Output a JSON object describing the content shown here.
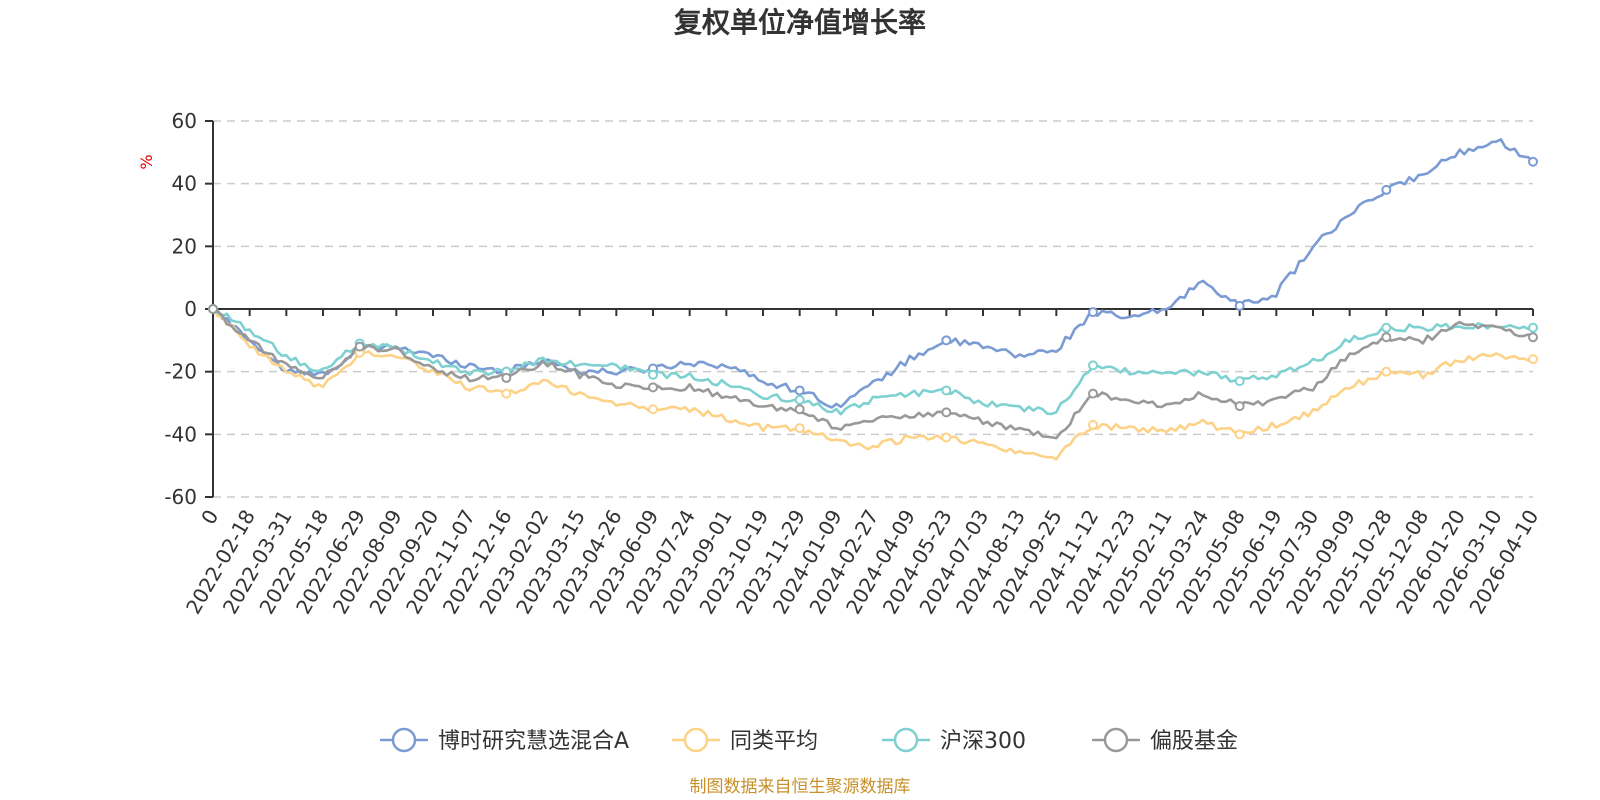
{
  "chart_data": {
    "type": "line",
    "title": "复权单位净值增长率",
    "ylabel": "%",
    "ylim": [
      -60,
      60
    ],
    "yticks": [
      60,
      40,
      20,
      0,
      -20,
      -40,
      -60
    ],
    "grid": true,
    "legend_position": "bottom",
    "x_tick_labels": [
      "0",
      "2022-02-18",
      "2022-03-31",
      "2022-05-18",
      "2022-06-29",
      "2022-08-09",
      "2022-09-20",
      "2022-11-07",
      "2022-12-16",
      "2023-02-02",
      "2023-03-15",
      "2023-04-26",
      "2023-06-09",
      "2023-07-24",
      "2023-09-01",
      "2023-10-19",
      "2023-11-29",
      "2024-01-09",
      "2024-02-27",
      "2024-04-09",
      "2024-05-23",
      "2024-07-03",
      "2024-08-13",
      "2024-09-25",
      "2024-11-12",
      "2024-12-23",
      "2025-02-11",
      "2025-03-24",
      "2025-05-08",
      "2025-06-19",
      "2025-07-30",
      "2025-09-09",
      "2025-10-28",
      "2025-12-08",
      "2026-01-20",
      "2026-03-10",
      "2026-04-10"
    ],
    "series": [
      {
        "name": "博时研究慧选混合A",
        "color": "#7b9bd4",
        "values": [
          0,
          -10,
          -20,
          -21,
          -13,
          -12,
          -15,
          -18,
          -20,
          -16,
          -20,
          -20,
          -19,
          -17,
          -18,
          -23,
          -26,
          -31,
          -24,
          -16,
          -10,
          -12,
          -15,
          -13,
          -1,
          -3,
          0,
          9,
          1,
          5,
          20,
          30,
          38,
          43,
          50,
          54,
          47
        ]
      },
      {
        "name": "同类平均",
        "color": "#fdd287",
        "values": [
          0,
          -12,
          -20,
          -25,
          -14,
          -15,
          -20,
          -25,
          -27,
          -23,
          -27,
          -30,
          -32,
          -32,
          -35,
          -38,
          -38,
          -42,
          -44,
          -41,
          -41,
          -43,
          -46,
          -47,
          -37,
          -38,
          -39,
          -36,
          -40,
          -37,
          -33,
          -25,
          -20,
          -21,
          -16,
          -15,
          -16
        ]
      },
      {
        "name": "沪深300",
        "color": "#7fd1d1",
        "values": [
          0,
          -7,
          -15,
          -20,
          -11,
          -12,
          -17,
          -20,
          -20,
          -16,
          -18,
          -18,
          -21,
          -21,
          -24,
          -28,
          -29,
          -33,
          -29,
          -27,
          -26,
          -30,
          -32,
          -33,
          -18,
          -20,
          -21,
          -20,
          -23,
          -21,
          -17,
          -10,
          -6,
          -6,
          -5,
          -6,
          -6
        ]
      },
      {
        "name": "偏股基金",
        "color": "#999999",
        "values": [
          0,
          -10,
          -18,
          -22,
          -12,
          -13,
          -19,
          -22,
          -22,
          -17,
          -21,
          -24,
          -25,
          -25,
          -28,
          -31,
          -32,
          -38,
          -35,
          -34,
          -33,
          -36,
          -39,
          -41,
          -27,
          -29,
          -31,
          -27,
          -31,
          -29,
          -25,
          -14,
          -9,
          -10,
          -5,
          -6,
          -9
        ]
      }
    ]
  },
  "source_text": "制图数据来自恒生聚源数据库"
}
